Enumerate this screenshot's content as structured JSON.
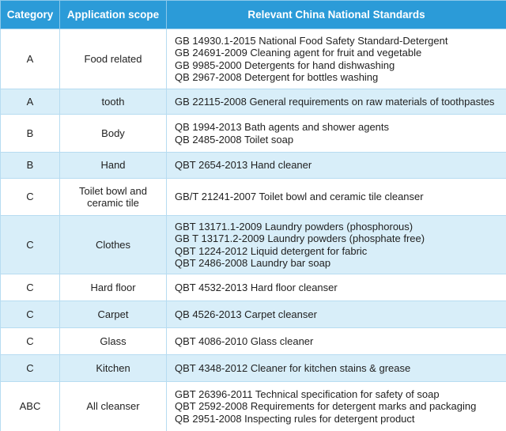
{
  "table": {
    "header": [
      "Category",
      "Application scope",
      "Relevant China National Standards"
    ],
    "rows": [
      {
        "category": "A",
        "scope": "Food related",
        "standards": [
          "GB 14930.1-2015 National Food Safety Standard-Detergent",
          "GB 24691-2009 Cleaning agent for fruit and vegetable",
          "GB 9985-2000 Detergents for hand dishwashing",
          "QB 2967-2008 Detergent for bottles washing"
        ]
      },
      {
        "category": "A",
        "scope": "tooth",
        "standards": [
          "GB 22115-2008 General requirements on raw materials of toothpastes"
        ]
      },
      {
        "category": "B",
        "scope": "Body",
        "standards": [
          "QB 1994-2013 Bath agents and shower agents",
          "QB 2485-2008 Toilet soap"
        ]
      },
      {
        "category": "B",
        "scope": "Hand",
        "standards": [
          "QBT 2654-2013 Hand cleaner"
        ]
      },
      {
        "category": "C",
        "scope": "Toilet bowl and ceramic tile",
        "standards": [
          "GB/T 21241-2007 Toilet bowl and ceramic tile cleanser"
        ]
      },
      {
        "category": "C",
        "scope": "Clothes",
        "standards": [
          "GBT 13171.1-2009 Laundry powders (phosphorous)",
          "GB T 13171.2-2009 Laundry powders (phosphate free)",
          "QBT 1224-2012 Liquid detergent for fabric",
          "QBT 2486-2008 Laundry bar soap"
        ]
      },
      {
        "category": "C",
        "scope": "Hard floor",
        "standards": [
          "QBT 4532-2013 Hard floor cleanser"
        ]
      },
      {
        "category": "C",
        "scope": "Carpet",
        "standards": [
          "QB 4526-2013 Carpet cleanser"
        ]
      },
      {
        "category": "C",
        "scope": "Glass",
        "standards": [
          "QBT 4086-2010 Glass cleaner"
        ]
      },
      {
        "category": "C",
        "scope": "Kitchen",
        "standards": [
          "QBT 4348-2012 Cleaner for kitchen stains & grease"
        ]
      },
      {
        "category": "ABC",
        "scope": "All cleanser",
        "standards": [
          "GBT 26396-2011 Technical specification for safety of soap",
          "QBT 2592-2008 Requirements for detergent marks and packaging",
          "QB 2951-2008 Inspecting rules for detergent product"
        ]
      }
    ]
  }
}
